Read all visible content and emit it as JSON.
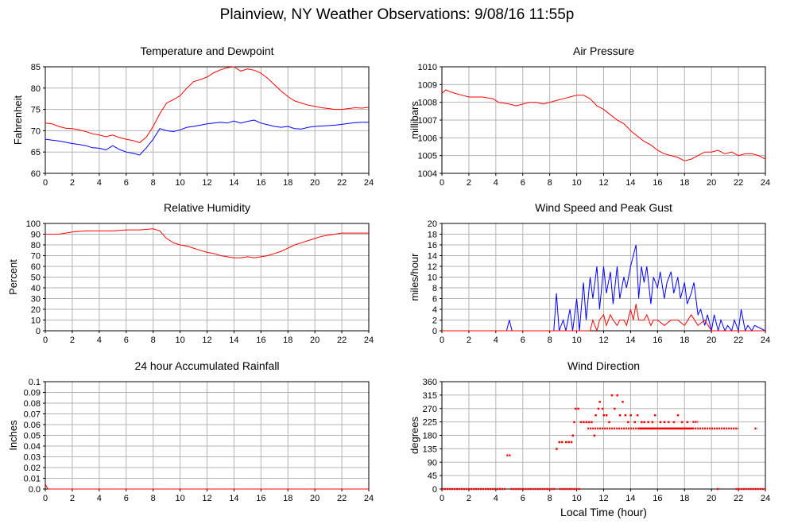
{
  "page": {
    "title": "Plainview, NY Weather Observations: 9/08/16 11:55p"
  },
  "chart_data": [
    {
      "id": "temp",
      "type": "line",
      "title": "Temperature and Dewpoint",
      "ylabel": "Fahrenheit",
      "xlabel": "",
      "xlim": [
        0,
        24
      ],
      "ylim": [
        60,
        85
      ],
      "xticks": [
        0,
        2,
        4,
        6,
        8,
        10,
        12,
        14,
        16,
        18,
        20,
        22,
        24
      ],
      "yticks": [
        60,
        65,
        70,
        75,
        80,
        85
      ],
      "grid": true,
      "series": [
        {
          "color": "#ff0000",
          "x": [
            0,
            0.5,
            1,
            1.5,
            2,
            2.5,
            3,
            3.5,
            4,
            4.5,
            5,
            5.5,
            6,
            6.5,
            7,
            7.5,
            8,
            8.5,
            9,
            9.5,
            10,
            10.5,
            11,
            11.5,
            12,
            12.5,
            13,
            13.5,
            14,
            14.5,
            15,
            15.5,
            16,
            16.5,
            17,
            17.5,
            18,
            18.5,
            19,
            19.5,
            20,
            20.5,
            21,
            21.5,
            22,
            22.5,
            23,
            23.5,
            24
          ],
          "y": [
            71.8,
            71.6,
            71.0,
            70.6,
            70.5,
            70.2,
            69.8,
            69.3,
            69.0,
            68.6,
            69.0,
            68.4,
            68.0,
            67.7,
            67.2,
            68.5,
            71.0,
            74.0,
            76.5,
            77.3,
            78.2,
            80.0,
            81.5,
            82.0,
            82.6,
            83.6,
            84.3,
            84.8,
            85.0,
            84.0,
            84.5,
            84.2,
            83.5,
            82.3,
            80.8,
            79.3,
            78.0,
            77.0,
            76.5,
            76.0,
            75.7,
            75.4,
            75.2,
            75.0,
            75.0,
            75.2,
            75.4,
            75.3,
            75.5
          ]
        },
        {
          "color": "#0000ff",
          "x": [
            0,
            0.5,
            1,
            1.5,
            2,
            2.5,
            3,
            3.5,
            4,
            4.5,
            5,
            5.5,
            6,
            6.5,
            7,
            7.5,
            8,
            8.5,
            9,
            9.5,
            10,
            10.5,
            11,
            11.5,
            12,
            12.5,
            13,
            13.5,
            14,
            14.5,
            15,
            15.5,
            16,
            16.5,
            17,
            17.5,
            18,
            18.5,
            19,
            19.5,
            20,
            20.5,
            21,
            21.5,
            22,
            22.5,
            23,
            23.5,
            24
          ],
          "y": [
            68.0,
            67.8,
            67.6,
            67.3,
            67.0,
            66.8,
            66.5,
            66.0,
            65.9,
            65.5,
            66.5,
            65.6,
            65.0,
            64.7,
            64.3,
            66.0,
            68.0,
            70.5,
            70.0,
            69.8,
            70.2,
            70.8,
            71.0,
            71.3,
            71.6,
            71.8,
            72.0,
            71.8,
            72.3,
            71.8,
            72.2,
            72.5,
            71.8,
            71.4,
            71.0,
            70.8,
            71.0,
            70.5,
            70.4,
            70.8,
            71.0,
            71.1,
            71.2,
            71.3,
            71.5,
            71.7,
            71.9,
            72.0,
            72.0
          ]
        }
      ]
    },
    {
      "id": "pressure",
      "type": "line",
      "title": "Air Pressure",
      "ylabel": "millibars",
      "xlabel": "",
      "xlim": [
        0,
        24
      ],
      "ylim": [
        1004,
        1010
      ],
      "xticks": [
        0,
        2,
        4,
        6,
        8,
        10,
        12,
        14,
        16,
        18,
        20,
        22,
        24
      ],
      "yticks": [
        1004,
        1005,
        1006,
        1007,
        1008,
        1009,
        1010
      ],
      "grid": true,
      "series": [
        {
          "color": "#ff0000",
          "x": [
            0,
            0.3,
            0.6,
            1,
            1.5,
            2,
            3,
            3.8,
            4.2,
            5,
            5.5,
            6,
            6.5,
            7,
            7.5,
            8,
            8.5,
            9,
            9.5,
            10,
            10.5,
            11,
            11.5,
            12,
            12.5,
            13,
            13.5,
            14,
            14.5,
            15,
            15.5,
            16,
            16.5,
            17,
            17.5,
            18,
            18.5,
            19,
            19.5,
            20,
            20.5,
            21,
            21.5,
            22,
            22.5,
            23,
            23.5,
            24
          ],
          "y": [
            1008.5,
            1008.7,
            1008.6,
            1008.5,
            1008.4,
            1008.3,
            1008.3,
            1008.2,
            1008.0,
            1007.9,
            1007.8,
            1007.9,
            1008.0,
            1008.0,
            1007.9,
            1008.0,
            1008.1,
            1008.2,
            1008.3,
            1008.4,
            1008.4,
            1008.2,
            1007.8,
            1007.6,
            1007.3,
            1007.0,
            1006.8,
            1006.4,
            1006.1,
            1005.8,
            1005.6,
            1005.3,
            1005.1,
            1005.0,
            1004.9,
            1004.7,
            1004.8,
            1005.0,
            1005.2,
            1005.2,
            1005.3,
            1005.1,
            1005.2,
            1005.0,
            1005.1,
            1005.1,
            1005.0,
            1004.8
          ]
        }
      ]
    },
    {
      "id": "humidity",
      "type": "line",
      "title": "Relative Humidity",
      "ylabel": "Percent",
      "xlabel": "",
      "xlim": [
        0,
        24
      ],
      "ylim": [
        0,
        100
      ],
      "xticks": [
        0,
        2,
        4,
        6,
        8,
        10,
        12,
        14,
        16,
        18,
        20,
        22,
        24
      ],
      "yticks": [
        0,
        10,
        20,
        30,
        40,
        50,
        60,
        70,
        80,
        90,
        100
      ],
      "grid": true,
      "series": [
        {
          "color": "#ff0000",
          "x": [
            0,
            1,
            2,
            3,
            4,
            5,
            6,
            7,
            8,
            8.5,
            9,
            9.5,
            10,
            10.5,
            11,
            11.5,
            12,
            12.5,
            13,
            13.5,
            14,
            14.5,
            15,
            15.5,
            16,
            16.5,
            17,
            17.5,
            18,
            18.5,
            19,
            19.5,
            20,
            20.5,
            21,
            21.5,
            22,
            23,
            24
          ],
          "y": [
            90,
            90,
            92,
            93,
            93,
            93,
            94,
            94,
            95,
            93,
            86,
            82,
            80,
            79,
            77,
            75,
            73,
            72,
            70,
            69,
            68,
            68,
            69,
            68,
            69,
            70,
            72,
            74,
            77,
            80,
            82,
            84,
            86,
            88,
            89,
            90,
            91,
            91,
            91
          ]
        }
      ]
    },
    {
      "id": "wind",
      "type": "line",
      "title": "Wind Speed and Peak Gust",
      "ylabel": "miles/hour",
      "xlabel": "",
      "xlim": [
        0,
        24
      ],
      "ylim": [
        0,
        20
      ],
      "xticks": [
        0,
        2,
        4,
        6,
        8,
        10,
        12,
        14,
        16,
        18,
        20,
        22,
        24
      ],
      "yticks": [
        0,
        2,
        4,
        6,
        8,
        10,
        12,
        14,
        16,
        18,
        20
      ],
      "grid": true,
      "series": [
        {
          "color": "#0000ff",
          "x": [
            0,
            4.8,
            5,
            5.2,
            8.3,
            8.5,
            8.7,
            9,
            9.2,
            9.5,
            9.7,
            10,
            10.2,
            10.5,
            10.7,
            11,
            11.2,
            11.5,
            11.7,
            12,
            12.2,
            12.5,
            12.7,
            13,
            13.2,
            13.5,
            13.7,
            14,
            14.2,
            14.4,
            14.6,
            14.8,
            15,
            15.2,
            15.5,
            15.7,
            16,
            16.2,
            16.5,
            16.7,
            17,
            17.2,
            17.5,
            17.7,
            18,
            18.2,
            18.5,
            18.7,
            19,
            19.2,
            19.5,
            19.7,
            20,
            20.2,
            20.5,
            20.7,
            21,
            21.2,
            21.5,
            21.7,
            22,
            22.2,
            22.5,
            22.7,
            23,
            23.2,
            24
          ],
          "y": [
            0,
            0,
            2,
            0,
            0,
            7,
            0,
            2,
            0,
            4,
            0,
            6,
            0,
            9,
            2,
            10,
            6,
            12,
            4,
            12,
            7,
            11,
            5,
            12,
            6,
            10,
            8,
            12,
            14,
            16,
            6,
            12,
            9,
            12,
            5,
            10,
            8,
            11,
            6,
            9,
            11,
            7,
            10,
            6,
            9,
            5,
            7,
            9,
            3,
            4,
            1,
            3,
            0,
            3,
            0,
            2,
            0,
            1,
            0,
            2,
            0,
            4,
            0,
            1,
            0,
            1,
            0
          ]
        },
        {
          "color": "#ff0000",
          "x": [
            0,
            8.5,
            9,
            9.5,
            10,
            10.5,
            11,
            11.2,
            11.5,
            11.7,
            12,
            12.2,
            12.5,
            12.7,
            13,
            13.2,
            13.5,
            13.7,
            14,
            14.2,
            14.4,
            14.6,
            15,
            15.2,
            15.5,
            15.7,
            16,
            16.5,
            17,
            17.5,
            18,
            18.5,
            19,
            19.5,
            20,
            24
          ],
          "y": [
            0,
            0,
            0,
            0,
            0,
            0,
            0,
            2,
            0,
            2,
            3,
            1,
            3,
            2,
            1,
            2,
            2,
            1,
            4,
            2,
            5,
            2,
            2,
            3,
            1,
            2,
            2,
            1,
            2,
            2,
            1,
            3,
            1,
            2,
            0,
            0
          ]
        }
      ]
    },
    {
      "id": "rain",
      "type": "line",
      "title": "24 hour Accumulated Rainfall",
      "ylabel": "Inches",
      "xlabel": "",
      "xlim": [
        0,
        24
      ],
      "ylim": [
        0,
        0.1
      ],
      "xticks": [
        0,
        2,
        4,
        6,
        8,
        10,
        12,
        14,
        16,
        18,
        20,
        22,
        24
      ],
      "yticks": [
        "0.0",
        "0.01",
        "0.02",
        "0.03",
        "0.04",
        "0.05",
        "0.06",
        "0.07",
        "0.08",
        "0.09",
        "0.1"
      ],
      "grid": true,
      "series": [
        {
          "color": "#ff0000",
          "x": [
            0,
            0.1,
            0.2,
            24
          ],
          "y": [
            0.005,
            0.002,
            0,
            0
          ]
        }
      ]
    },
    {
      "id": "direction",
      "type": "scatter",
      "title": "Wind Direction",
      "ylabel": "degrees",
      "xlabel": "Local Time (hour)",
      "xlim": [
        0,
        24
      ],
      "ylim": [
        0,
        360
      ],
      "xticks": [
        0,
        2,
        4,
        6,
        8,
        10,
        12,
        14,
        16,
        18,
        20,
        22,
        24
      ],
      "yticks": [
        0,
        45,
        90,
        135,
        180,
        225,
        270,
        315,
        360
      ],
      "grid": true,
      "series": [
        {
          "color": "#ff0000",
          "segments": [
            [
              0,
              4.7,
              0
            ],
            [
              5.1,
              8.4,
              0
            ],
            [
              8.7,
              10.3,
              0
            ],
            [
              20.4,
              20.6,
              0
            ],
            [
              21.8,
              24,
              0
            ],
            [
              4.8,
              5.1,
              113
            ],
            [
              10.8,
              22.0,
              203
            ],
            [
              14.6,
              18.7,
              203
            ],
            [
              18.6,
              19.0,
              225
            ],
            [
              23.2,
              23.4,
              203
            ]
          ],
          "points": [
            [
              8.5,
              135
            ],
            [
              8.7,
              158
            ],
            [
              8.9,
              158
            ],
            [
              9.2,
              158
            ],
            [
              9.4,
              158
            ],
            [
              9.6,
              158
            ],
            [
              9.7,
              180
            ],
            [
              9.8,
              225
            ],
            [
              9.9,
              270
            ],
            [
              10.1,
              270
            ],
            [
              10.3,
              225
            ],
            [
              10.5,
              225
            ],
            [
              10.7,
              225
            ],
            [
              10.9,
              225
            ],
            [
              11.1,
              225
            ],
            [
              11.3,
              180
            ],
            [
              11.4,
              248
            ],
            [
              11.6,
              270
            ],
            [
              11.7,
              293
            ],
            [
              11.9,
              270
            ],
            [
              12.0,
              248
            ],
            [
              12.2,
              248
            ],
            [
              12.4,
              225
            ],
            [
              12.6,
              315
            ],
            [
              12.8,
              270
            ],
            [
              13.0,
              315
            ],
            [
              13.2,
              248
            ],
            [
              13.4,
              293
            ],
            [
              13.6,
              248
            ],
            [
              13.8,
              225
            ],
            [
              14.0,
              248
            ],
            [
              14.3,
              225
            ],
            [
              14.5,
              248
            ],
            [
              14.8,
              225
            ],
            [
              15.0,
              225
            ],
            [
              15.3,
              225
            ],
            [
              15.6,
              225
            ],
            [
              15.8,
              248
            ],
            [
              16.2,
              225
            ],
            [
              16.5,
              225
            ],
            [
              16.8,
              225
            ],
            [
              17.2,
              225
            ],
            [
              17.5,
              248
            ],
            [
              17.8,
              225
            ],
            [
              18.2,
              225
            ]
          ]
        }
      ]
    }
  ]
}
